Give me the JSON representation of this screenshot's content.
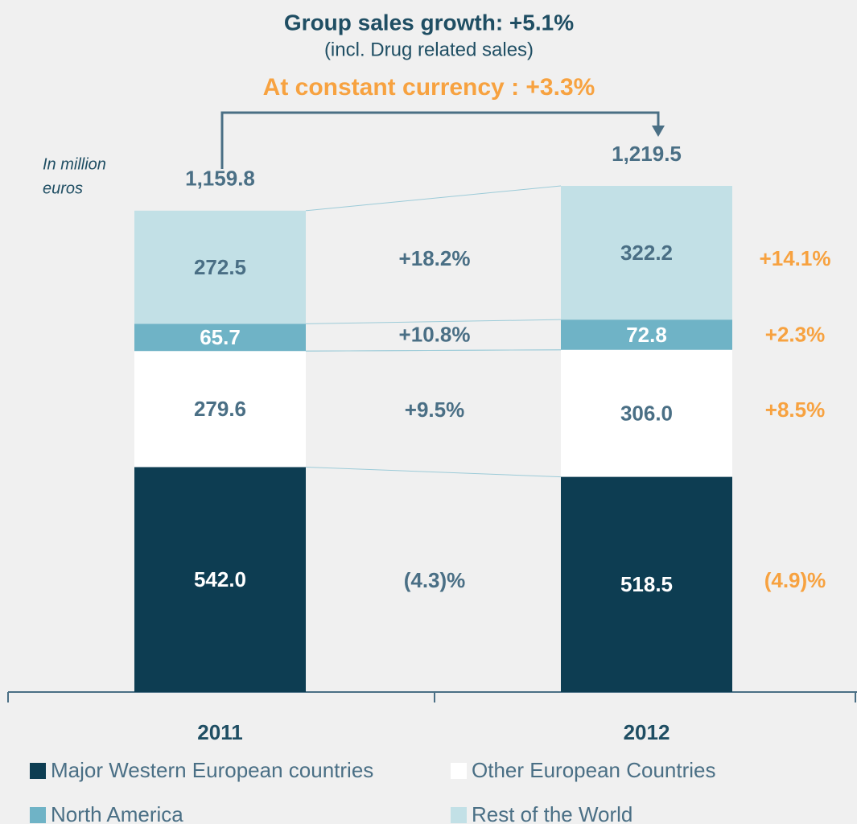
{
  "chart_data": {
    "type": "stacked_bar",
    "title": "Group sales growth: +5.1%",
    "subtitle": "(incl. Drug related sales)",
    "highlight": "At constant currency : +3.3%",
    "unit_label": [
      "In million",
      "euros"
    ],
    "categories": [
      "2011",
      "2012"
    ],
    "total_labels": [
      "1,159.8",
      "1,219.5"
    ],
    "series": [
      {
        "name": "Major Western European countries",
        "color": "#0d3d52",
        "label_color": "#ffffff",
        "values": [
          542.0,
          518.5
        ],
        "value_labels": [
          "542.0",
          "518.5"
        ],
        "growth": "(4.3)%",
        "growth_cc": "(4.9)%"
      },
      {
        "name": "Other European Countries",
        "color": "#ffffff",
        "label_color": "#4a6f85",
        "values": [
          279.6,
          306.0
        ],
        "value_labels": [
          "279.6",
          "306.0"
        ],
        "growth": "+9.5%",
        "growth_cc": "+8.5%"
      },
      {
        "name": "North America",
        "color": "#6fb3c6",
        "label_color": "#ffffff",
        "values": [
          65.7,
          72.8
        ],
        "value_labels": [
          "65.7",
          "72.8"
        ],
        "growth": "+10.8%",
        "growth_cc": "+2.3%"
      },
      {
        "name": "Rest of the World",
        "color": "#c2e0e6",
        "label_color": "#4a6f85",
        "values": [
          272.5,
          322.2
        ],
        "value_labels": [
          "272.5",
          "322.2"
        ],
        "growth": "+18.2%",
        "growth_cc": "+14.1%"
      }
    ]
  }
}
